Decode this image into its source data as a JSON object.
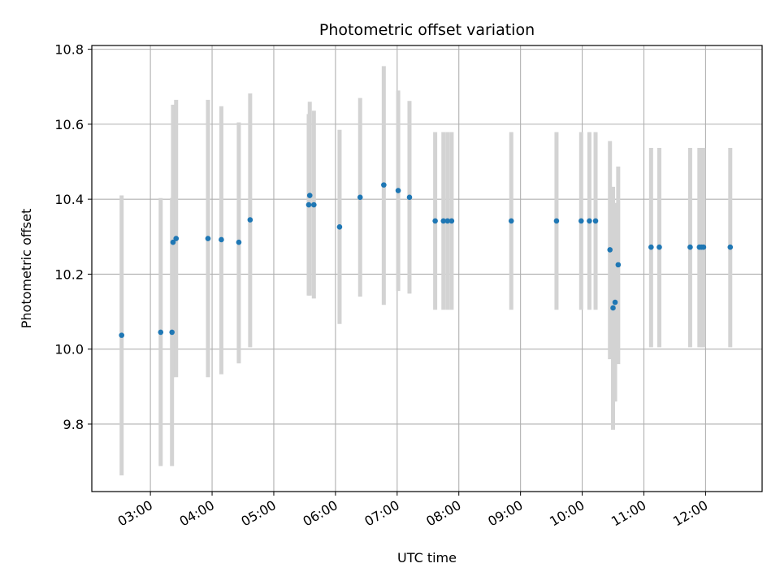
{
  "chart_data": {
    "type": "scatter",
    "title": "Photometric offset variation",
    "xlabel": "UTC time",
    "ylabel": "Photometric offset",
    "x_unit": "UTC time (HH:MM)",
    "xlim": [
      "02:03",
      "12:55"
    ],
    "ylim": [
      9.62,
      10.81
    ],
    "x_ticks": [
      "03:00",
      "04:00",
      "05:00",
      "06:00",
      "07:00",
      "08:00",
      "09:00",
      "10:00",
      "11:00",
      "12:00"
    ],
    "y_ticks": [
      9.8,
      10.0,
      10.2,
      10.4,
      10.6,
      10.8
    ],
    "grid": true,
    "point_color": "#1f77b4",
    "errorbar_color": "#d3d3d3",
    "points": [
      {
        "x": "02:32",
        "y": 10.037,
        "yerr_low": 9.663,
        "yerr_high": 10.41
      },
      {
        "x": "03:10",
        "y": 10.045,
        "yerr_low": 9.688,
        "yerr_high": 10.403
      },
      {
        "x": "03:21",
        "y": 10.045,
        "yerr_low": 9.688,
        "yerr_high": 10.403
      },
      {
        "x": "03:22",
        "y": 10.285,
        "yerr_low": 9.925,
        "yerr_high": 10.652
      },
      {
        "x": "03:25",
        "y": 10.295,
        "yerr_low": 9.925,
        "yerr_high": 10.665
      },
      {
        "x": "03:56",
        "y": 10.295,
        "yerr_low": 9.925,
        "yerr_high": 10.665
      },
      {
        "x": "04:09",
        "y": 10.292,
        "yerr_low": 9.933,
        "yerr_high": 10.648
      },
      {
        "x": "04:26",
        "y": 10.285,
        "yerr_low": 9.962,
        "yerr_high": 10.605
      },
      {
        "x": "04:37",
        "y": 10.345,
        "yerr_low": 10.005,
        "yerr_high": 10.682
      },
      {
        "x": "05:34",
        "y": 10.385,
        "yerr_low": 10.143,
        "yerr_high": 10.627
      },
      {
        "x": "05:35",
        "y": 10.41,
        "yerr_low": 10.143,
        "yerr_high": 10.66
      },
      {
        "x": "05:39",
        "y": 10.385,
        "yerr_low": 10.135,
        "yerr_high": 10.636
      },
      {
        "x": "06:04",
        "y": 10.326,
        "yerr_low": 10.067,
        "yerr_high": 10.585
      },
      {
        "x": "06:24",
        "y": 10.405,
        "yerr_low": 10.14,
        "yerr_high": 10.67
      },
      {
        "x": "06:47",
        "y": 10.438,
        "yerr_low": 10.118,
        "yerr_high": 10.755
      },
      {
        "x": "07:01",
        "y": 10.423,
        "yerr_low": 10.155,
        "yerr_high": 10.69
      },
      {
        "x": "07:12",
        "y": 10.405,
        "yerr_low": 10.148,
        "yerr_high": 10.662
      },
      {
        "x": "07:37",
        "y": 10.342,
        "yerr_low": 10.105,
        "yerr_high": 10.579
      },
      {
        "x": "07:45",
        "y": 10.342,
        "yerr_low": 10.105,
        "yerr_high": 10.579
      },
      {
        "x": "07:49",
        "y": 10.342,
        "yerr_low": 10.105,
        "yerr_high": 10.579
      },
      {
        "x": "07:53",
        "y": 10.342,
        "yerr_low": 10.105,
        "yerr_high": 10.579
      },
      {
        "x": "08:51",
        "y": 10.342,
        "yerr_low": 10.105,
        "yerr_high": 10.579
      },
      {
        "x": "09:35",
        "y": 10.342,
        "yerr_low": 10.105,
        "yerr_high": 10.579
      },
      {
        "x": "09:59",
        "y": 10.342,
        "yerr_low": 10.105,
        "yerr_high": 10.579
      },
      {
        "x": "10:07",
        "y": 10.342,
        "yerr_low": 10.105,
        "yerr_high": 10.579
      },
      {
        "x": "10:13",
        "y": 10.342,
        "yerr_low": 10.105,
        "yerr_high": 10.579
      },
      {
        "x": "10:27",
        "y": 10.265,
        "yerr_low": 9.973,
        "yerr_high": 10.555
      },
      {
        "x": "10:30",
        "y": 10.11,
        "yerr_low": 9.785,
        "yerr_high": 10.433
      },
      {
        "x": "10:32",
        "y": 10.125,
        "yerr_low": 9.86,
        "yerr_high": 10.39
      },
      {
        "x": "10:35",
        "y": 10.225,
        "yerr_low": 9.96,
        "yerr_high": 10.487
      },
      {
        "x": "11:07",
        "y": 10.272,
        "yerr_low": 10.005,
        "yerr_high": 10.537
      },
      {
        "x": "11:15",
        "y": 10.272,
        "yerr_low": 10.005,
        "yerr_high": 10.537
      },
      {
        "x": "11:45",
        "y": 10.272,
        "yerr_low": 10.005,
        "yerr_high": 10.537
      },
      {
        "x": "11:54",
        "y": 10.272,
        "yerr_low": 10.005,
        "yerr_high": 10.537
      },
      {
        "x": "11:56",
        "y": 10.272,
        "yerr_low": 10.005,
        "yerr_high": 10.537
      },
      {
        "x": "11:58",
        "y": 10.272,
        "yerr_low": 10.005,
        "yerr_high": 10.537
      },
      {
        "x": "12:24",
        "y": 10.272,
        "yerr_low": 10.005,
        "yerr_high": 10.537
      }
    ]
  }
}
